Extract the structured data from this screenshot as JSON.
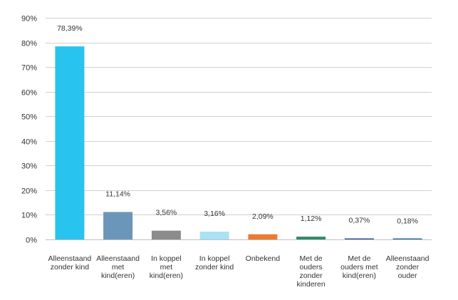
{
  "chart_data": {
    "type": "bar",
    "title": "",
    "xlabel": "",
    "ylabel": "",
    "ylim": [
      0,
      90
    ],
    "yticks": [
      "0%",
      "10%",
      "20%",
      "30%",
      "40%",
      "50%",
      "60%",
      "70%",
      "80%",
      "90%"
    ],
    "ytick_values": [
      0,
      10,
      20,
      30,
      40,
      50,
      60,
      70,
      80,
      90
    ],
    "grid": true,
    "legend": "none",
    "categories": [
      [
        "Alleenstaand",
        "zonder kind"
      ],
      [
        "Alleenstaand",
        "met",
        "kind(eren)"
      ],
      [
        "In koppel",
        "met",
        "kind(eren)"
      ],
      [
        "In koppel",
        "zonder kind"
      ],
      [
        "Onbekend"
      ],
      [
        "Met de",
        "ouders",
        "zonder",
        "kinderen"
      ],
      [
        "Met de",
        "ouders met",
        "kind(eren)"
      ],
      [
        "Alleenstaand",
        "zonder",
        "ouder"
      ]
    ],
    "values": [
      78.39,
      11.14,
      3.56,
      3.16,
      2.09,
      1.12,
      0.37,
      0.18
    ],
    "value_labels": [
      "78,39%",
      "11,14%",
      "3,56%",
      "3,16%",
      "2,09%",
      "1,12%",
      "0,37%",
      "0,18%"
    ],
    "colors": [
      "#29c3ef",
      "#6b96b9",
      "#8c8c8c",
      "#a9e2f5",
      "#ec7a2f",
      "#2e8b68",
      "#3d5a9e",
      "#2f75a6"
    ]
  }
}
